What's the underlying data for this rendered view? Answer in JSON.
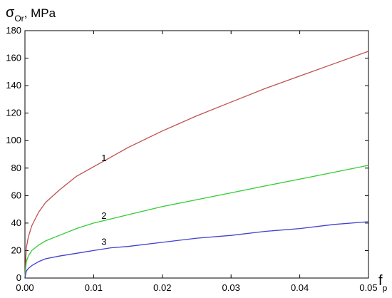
{
  "chart_data": {
    "type": "line",
    "ylabel": {
      "symbol": "σ",
      "subscript": "Or",
      "unit": ", MPa"
    },
    "xlabel": {
      "symbol": "f",
      "subscript": "p"
    },
    "xlim": [
      0,
      0.05
    ],
    "ylim": [
      0,
      180
    ],
    "x_ticks": [
      0,
      0.01,
      0.02,
      0.03,
      0.04,
      0.05
    ],
    "x_tick_labels": [
      "0.00",
      "0.01",
      "0.02",
      "0.03",
      "0.04",
      "0.05"
    ],
    "y_ticks": [
      0,
      20,
      40,
      60,
      80,
      100,
      120,
      140,
      160,
      180
    ],
    "y_tick_labels": [
      "0",
      "20",
      "40",
      "60",
      "80",
      "100",
      "120",
      "140",
      "160",
      "180"
    ],
    "grid": false,
    "series": [
      {
        "name": "1",
        "color": "#c0504d",
        "x": [
          0,
          0.0002,
          0.0005,
          0.001,
          0.002,
          0.003,
          0.005,
          0.0075,
          0.01,
          0.0125,
          0.015,
          0.02,
          0.025,
          0.03,
          0.035,
          0.04,
          0.045,
          0.05
        ],
        "y": [
          0,
          22,
          30,
          38,
          48,
          55,
          64,
          74,
          81,
          88,
          95,
          107,
          118,
          128,
          138,
          147,
          156,
          165
        ]
      },
      {
        "name": "2",
        "color": "#33cc33",
        "x": [
          0,
          0.0002,
          0.0005,
          0.001,
          0.002,
          0.003,
          0.005,
          0.0075,
          0.01,
          0.0125,
          0.015,
          0.02,
          0.025,
          0.03,
          0.035,
          0.04,
          0.045,
          0.05
        ],
        "y": [
          0,
          12,
          16,
          20,
          24,
          27,
          31,
          36,
          40,
          43,
          46,
          52,
          57,
          62,
          67,
          72,
          77,
          82
        ]
      },
      {
        "name": "3",
        "color": "#4040d0",
        "x": [
          0,
          0.0002,
          0.0005,
          0.001,
          0.002,
          0.003,
          0.005,
          0.0075,
          0.01,
          0.0125,
          0.015,
          0.02,
          0.025,
          0.03,
          0.035,
          0.04,
          0.045,
          0.05
        ],
        "y": [
          0,
          5,
          7,
          9,
          12,
          14,
          16,
          18,
          20,
          22,
          23,
          26,
          29,
          31,
          34,
          36,
          39,
          41
        ]
      }
    ],
    "series_label_positions": [
      {
        "x": 0.0115,
        "y": 85
      },
      {
        "x": 0.0115,
        "y": 43
      },
      {
        "x": 0.0115,
        "y": 24
      }
    ]
  }
}
